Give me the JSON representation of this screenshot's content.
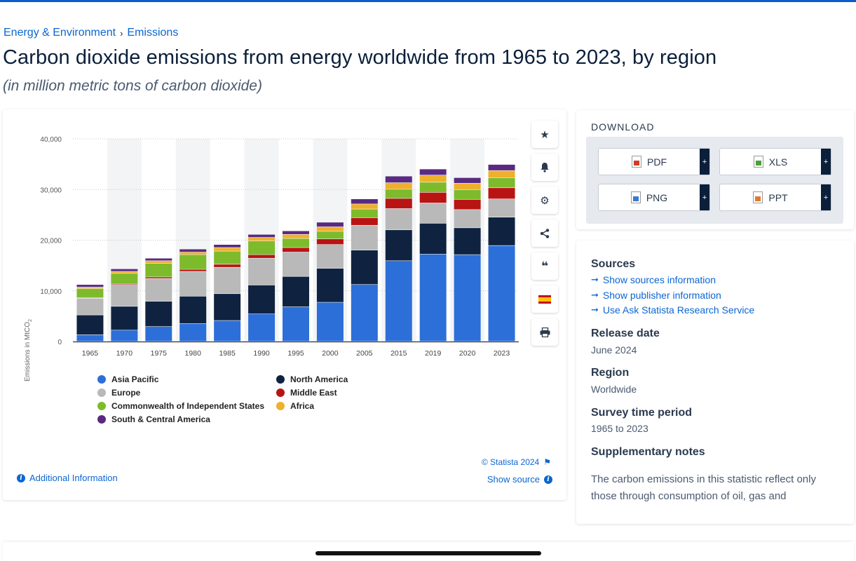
{
  "breadcrumb": {
    "parent": "Energy & Environment",
    "separator": "›",
    "current": "Emissions"
  },
  "title": "Carbon dioxide emissions from energy worldwide from 1965 to 2023, by region",
  "subtitle": "(in million metric tons of carbon dioxide)",
  "toolbar": {
    "icons": [
      "star-icon",
      "bell-icon",
      "gear-icon",
      "share-icon",
      "quote-icon",
      "flag-spain-icon",
      "print-icon"
    ]
  },
  "chart_data": {
    "type": "bar",
    "stacked": true,
    "ylabel": "Emissions in MtCO",
    "ylabel_sub": "2",
    "ylim": [
      0,
      40000
    ],
    "yticks": [
      "0",
      "10,000",
      "20,000",
      "30,000",
      "40,000"
    ],
    "ytick_values": [
      0,
      10000,
      20000,
      30000,
      40000
    ],
    "grid": true,
    "legend_position": "bottom",
    "categories": [
      "1965",
      "1970",
      "1975",
      "1980",
      "1985",
      "1990",
      "1995",
      "2000",
      "2005",
      "2015",
      "2019",
      "2020",
      "2023"
    ],
    "series": [
      {
        "name": "Asia Pacific",
        "color": "#2d6fd8",
        "values": [
          1300,
          2200,
          2900,
          3500,
          4100,
          5400,
          6800,
          7700,
          11200,
          15900,
          17200,
          17100,
          18900
        ]
      },
      {
        "name": "North America",
        "color": "#0f2341",
        "values": [
          3900,
          4700,
          5000,
          5400,
          5300,
          5700,
          6000,
          6700,
          6800,
          6100,
          6100,
          5300,
          5600
        ]
      },
      {
        "name": "Europe",
        "color": "#b9b9b9",
        "values": [
          3300,
          4300,
          4500,
          4900,
          5200,
          5300,
          4800,
          4700,
          4900,
          4200,
          4000,
          3600,
          3600
        ]
      },
      {
        "name": "Middle East",
        "color": "#b81414",
        "values": [
          100,
          200,
          300,
          400,
          600,
          700,
          900,
          1100,
          1500,
          2000,
          2100,
          2000,
          2200
        ]
      },
      {
        "name": "Commonwealth of Independent States",
        "color": "#7dbb2c",
        "values": [
          1800,
          2000,
          2700,
          2900,
          2600,
          2700,
          1800,
          1500,
          1700,
          1800,
          2000,
          1900,
          2000
        ]
      },
      {
        "name": "Africa",
        "color": "#efb02d",
        "values": [
          300,
          400,
          500,
          500,
          700,
          700,
          800,
          900,
          1000,
          1300,
          1400,
          1300,
          1400
        ]
      },
      {
        "name": "South & Central America",
        "color": "#5a2a82",
        "values": [
          500,
          500,
          500,
          600,
          600,
          600,
          700,
          900,
          1000,
          1300,
          1200,
          1100,
          1200
        ]
      }
    ]
  },
  "chart_footer": {
    "copyright": "© Statista 2024",
    "additional_info": "Additional Information",
    "show_source": "Show source"
  },
  "download": {
    "title": "DOWNLOAD",
    "buttons": [
      {
        "label": "PDF",
        "color": "#d23a2a",
        "plus": "+"
      },
      {
        "label": "XLS",
        "color": "#4aa23a",
        "plus": "+"
      },
      {
        "label": "PNG",
        "color": "#3a7ad0",
        "plus": "+"
      },
      {
        "label": "PPT",
        "color": "#e07a2a",
        "plus": "+"
      }
    ]
  },
  "meta": {
    "sources_heading": "Sources",
    "links": [
      "Show sources information",
      "Show publisher information",
      "Use Ask Statista Research Service"
    ],
    "release_heading": "Release date",
    "release_value": "June 2024",
    "region_heading": "Region",
    "region_value": "Worldwide",
    "survey_heading": "Survey time period",
    "survey_value": "1965 to 2023",
    "notes_heading": "Supplementary notes",
    "notes_text": "The carbon emissions in this statistic reflect only those through consumption of oil, gas and"
  }
}
